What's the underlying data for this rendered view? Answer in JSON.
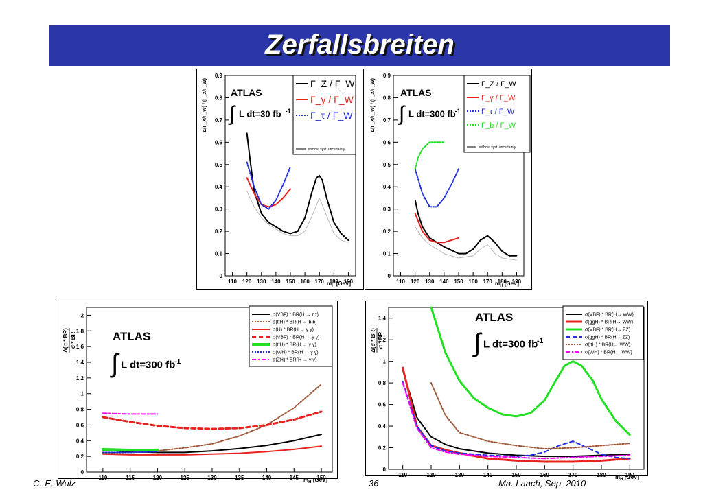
{
  "slide": {
    "title": "Zerfallsbreiten"
  },
  "footer": {
    "left": "C.-E. Wulz",
    "center": "36",
    "right": "Ma. Laach, Sep. 2010"
  },
  "colors": {
    "title_bg": "#2b37a8",
    "black": "#000000",
    "red": "#e8231f",
    "blue": "#1f2fe0",
    "green": "#22e022",
    "brown": "#a05a3c",
    "magenta": "#ff00ff",
    "gray": "#bbbbbb"
  },
  "chart_data": [
    {
      "type": "line",
      "experiment": "ATLAS",
      "lumi": "L dt=30 fb",
      "lumi_exp": "-1",
      "ylabel": "Δ(Γ_X/Γ_W) / (Γ_X/Γ_W)",
      "xlabel": "m",
      "xlabel_sub": "H",
      "xunit": "[GeV]",
      "xlim": [
        105,
        195
      ],
      "ylim": [
        0,
        0.9
      ],
      "xticks": [
        "110",
        "120",
        "130",
        "140",
        "150",
        "160",
        "170",
        "180",
        "190"
      ],
      "yticks": [
        "0",
        "0.1",
        "0.2",
        "0.3",
        "0.4",
        "0.5",
        "0.6",
        "0.7",
        "0.8",
        "0.9"
      ],
      "legend": [
        "Γ_Z / Γ_W",
        "Γ_γ / Γ_W",
        "Γ_τ / Γ_W"
      ],
      "legend_note": "without syst. uncertainty",
      "series": [
        {
          "name": "Γ_Z / Γ_W",
          "color": "black",
          "dash": "solid",
          "width": 2,
          "x": [
            120,
            122,
            125,
            130,
            135,
            140,
            145,
            150,
            155,
            160,
            165,
            168,
            170,
            172,
            175,
            180,
            185,
            190
          ],
          "y": [
            0.64,
            0.53,
            0.38,
            0.28,
            0.24,
            0.22,
            0.2,
            0.19,
            0.2,
            0.26,
            0.38,
            0.44,
            0.45,
            0.43,
            0.35,
            0.24,
            0.19,
            0.16
          ]
        },
        {
          "name": "Γ_γ / Γ_W",
          "color": "red",
          "dash": "solid",
          "width": 2,
          "x": [
            120,
            125,
            130,
            135,
            140,
            145,
            150
          ],
          "y": [
            0.44,
            0.37,
            0.32,
            0.31,
            0.32,
            0.35,
            0.39
          ]
        },
        {
          "name": "Γ_τ / Γ_W",
          "color": "blue",
          "dash": "dotted",
          "width": 2,
          "x": [
            120,
            125,
            130,
            135,
            140,
            145,
            150
          ],
          "y": [
            0.51,
            0.4,
            0.32,
            0.3,
            0.34,
            0.41,
            0.49
          ]
        },
        {
          "name": "",
          "color": "gray",
          "dash": "solid",
          "width": 1,
          "x": [
            120,
            125,
            130,
            135,
            140,
            145,
            150,
            155,
            160,
            165,
            170,
            175,
            180,
            185,
            190
          ],
          "y": [
            0.38,
            0.31,
            0.26,
            0.23,
            0.21,
            0.19,
            0.18,
            0.18,
            0.2,
            0.27,
            0.35,
            0.27,
            0.19,
            0.16,
            0.15
          ]
        }
      ]
    },
    {
      "type": "line",
      "experiment": "ATLAS",
      "lumi": "L dt=300 fb",
      "lumi_exp": "-1",
      "ylabel": "Δ(Γ_X/Γ_W) / (Γ_X/Γ_W)",
      "xlabel": "m",
      "xlabel_sub": "H",
      "xunit": "[GeV]",
      "xlim": [
        105,
        195
      ],
      "ylim": [
        0,
        0.9
      ],
      "xticks": [
        "110",
        "120",
        "130",
        "140",
        "150",
        "160",
        "170",
        "180",
        "190"
      ],
      "yticks": [
        "0",
        "0.1",
        "0.2",
        "0.3",
        "0.4",
        "0.5",
        "0.6",
        "0.7",
        "0.8",
        "0.9"
      ],
      "legend": [
        "Γ_Z / Γ_W",
        "Γ_γ / Γ_W",
        "Γ_τ / Γ_W",
        "Γ_b / Γ_W"
      ],
      "legend_note": "without syst. uncertainty",
      "series": [
        {
          "name": "Γ_Z / Γ_W",
          "color": "black",
          "dash": "solid",
          "width": 2,
          "x": [
            120,
            122,
            125,
            130,
            140,
            150,
            155,
            160,
            165,
            170,
            175,
            180,
            185,
            190
          ],
          "y": [
            0.34,
            0.28,
            0.22,
            0.17,
            0.13,
            0.1,
            0.1,
            0.12,
            0.16,
            0.18,
            0.15,
            0.11,
            0.09,
            0.09
          ]
        },
        {
          "name": "Γ_γ / Γ_W",
          "color": "red",
          "dash": "solid",
          "width": 2,
          "x": [
            120,
            125,
            130,
            135,
            140,
            145,
            150
          ],
          "y": [
            0.28,
            0.2,
            0.16,
            0.15,
            0.15,
            0.16,
            0.17
          ]
        },
        {
          "name": "Γ_τ / Γ_W",
          "color": "blue",
          "dash": "dotted",
          "width": 2,
          "x": [
            120,
            125,
            130,
            135,
            140,
            145,
            150
          ],
          "y": [
            0.48,
            0.37,
            0.31,
            0.31,
            0.35,
            0.41,
            0.48
          ]
        },
        {
          "name": "Γ_b / Γ_W",
          "color": "green",
          "dash": "dotted",
          "width": 2,
          "x": [
            120,
            122,
            125,
            130,
            135,
            140
          ],
          "y": [
            0.48,
            0.53,
            0.57,
            0.6,
            0.6,
            0.6
          ]
        },
        {
          "name": "",
          "color": "gray",
          "dash": "solid",
          "width": 1,
          "x": [
            120,
            125,
            130,
            140,
            150,
            160,
            165,
            170,
            175,
            180,
            190
          ],
          "y": [
            0.22,
            0.17,
            0.14,
            0.1,
            0.08,
            0.09,
            0.12,
            0.14,
            0.1,
            0.08,
            0.07
          ]
        }
      ]
    },
    {
      "type": "line",
      "experiment": "ATLAS",
      "lumi": "L dt=300 fb",
      "lumi_exp": "-1",
      "ylabel_num": "Δ(σ * BR)",
      "ylabel_den": "σ * BR",
      "xlabel": "m",
      "xlabel_sub": "H",
      "xunit": "[GeV]",
      "xlim": [
        107,
        152
      ],
      "ylim": [
        0,
        2.1
      ],
      "xticks": [
        "110",
        "115",
        "120",
        "125",
        "130",
        "135",
        "140",
        "145",
        "150"
      ],
      "yticks": [
        "0",
        "0.2",
        "0.4",
        "0.6",
        "0.8",
        "1",
        "1.2",
        "1.4",
        "1.6",
        "1.8",
        "2"
      ],
      "legend": [
        "σ(VBF) * BR(H → τ τ)",
        "σ(ttH) * BR(H → b b)",
        "σ(H) * BR(H → γ γ)",
        "σ(VBF) * BR(H → γ γ)",
        "σ(ttH) * BR(H → γ γ)",
        "σ(WH) * BR(H → γ γ)",
        "σ(ZH) * BR(H → γ γ)"
      ],
      "series": [
        {
          "name": "σ(VBF) * BR(H → τ τ)",
          "color": "black",
          "dash": "solid",
          "width": 2,
          "x": [
            110,
            115,
            120,
            125,
            130,
            135,
            140,
            145,
            150
          ],
          "y": [
            0.28,
            0.26,
            0.25,
            0.25,
            0.27,
            0.3,
            0.34,
            0.4,
            0.48
          ]
        },
        {
          "name": "σ(ttH) * BR(H → b b)",
          "color": "brown",
          "dash": "dotted",
          "width": 2,
          "x": [
            110,
            115,
            120,
            125,
            130,
            135,
            140,
            145,
            150
          ],
          "y": [
            0.24,
            0.25,
            0.27,
            0.31,
            0.36,
            0.46,
            0.6,
            0.82,
            1.12
          ]
        },
        {
          "name": "σ(H) * BR(H → γ γ)",
          "color": "red",
          "dash": "solid",
          "width": 2,
          "x": [
            110,
            115,
            120,
            125,
            130,
            135,
            140,
            145,
            150
          ],
          "y": [
            0.23,
            0.22,
            0.22,
            0.22,
            0.23,
            0.24,
            0.26,
            0.29,
            0.33
          ]
        },
        {
          "name": "σ(VBF) * BR(H → γ γ)",
          "color": "red",
          "dash": "dashed",
          "width": 3,
          "x": [
            110,
            115,
            120,
            125,
            130,
            135,
            140,
            145,
            150
          ],
          "y": [
            0.7,
            0.64,
            0.59,
            0.56,
            0.55,
            0.56,
            0.6,
            0.67,
            0.77
          ]
        },
        {
          "name": "σ(ttH) * BR(H → γ γ)",
          "color": "green",
          "dash": "solid",
          "width": 4,
          "x": [
            110,
            115,
            120
          ],
          "y": [
            0.29,
            0.28,
            0.28
          ]
        },
        {
          "name": "σ(WH) * BR(H → γ γ)",
          "color": "blue",
          "dash": "dotted",
          "width": 2,
          "x": [
            110,
            115,
            120
          ],
          "y": [
            0.25,
            0.25,
            0.26
          ]
        },
        {
          "name": "σ(ZH) * BR(H → γ γ)",
          "color": "magenta",
          "dash": "dashdot",
          "width": 2,
          "x": [
            110,
            115,
            120
          ],
          "y": [
            0.75,
            0.74,
            0.74
          ]
        }
      ]
    },
    {
      "type": "line",
      "experiment": "ATLAS",
      "lumi": "L dt=300 fb",
      "lumi_exp": "-1",
      "ylabel_num": "Δ(σ * BR)",
      "ylabel_den": "σ * BR",
      "xlabel": "m",
      "xlabel_sub": "H",
      "xunit": "[GeV]",
      "xlim": [
        105,
        195
      ],
      "ylim": [
        0,
        1.5
      ],
      "xticks": [
        "110",
        "120",
        "130",
        "140",
        "150",
        "160",
        "170",
        "180",
        "190"
      ],
      "yticks": [
        "0",
        "0.2",
        "0.4",
        "0.6",
        "0.8",
        "1",
        "1.2",
        "1.4"
      ],
      "legend": [
        "σ(VBF) * BR(H→ WW)",
        "σ(ggH) * BR(H→ WW)",
        "σ(VBF) * BR(H→ ZZ)",
        "σ(ggH) * BR(H→ ZZ)",
        "σ(ttH) * BR(H→ WW)",
        "σ(WH) * BR(H→ WW)"
      ],
      "series": [
        {
          "name": "σ(VBF) * BR(H→ WW)",
          "color": "black",
          "dash": "solid",
          "width": 2,
          "x": [
            110,
            115,
            120,
            125,
            130,
            140,
            150,
            160,
            170,
            180,
            190
          ],
          "y": [
            0.92,
            0.48,
            0.3,
            0.23,
            0.19,
            0.15,
            0.13,
            0.12,
            0.12,
            0.13,
            0.14
          ]
        },
        {
          "name": "σ(ggH) * BR(H→ WW)",
          "color": "red",
          "dash": "solid",
          "width": 3,
          "x": [
            110,
            115,
            120,
            125,
            130,
            140,
            150,
            160,
            170,
            180,
            190
          ],
          "y": [
            0.94,
            0.4,
            0.22,
            0.18,
            0.15,
            0.1,
            0.08,
            0.07,
            0.07,
            0.08,
            0.1
          ]
        },
        {
          "name": "σ(VBF) * BR(H→ ZZ)",
          "color": "green",
          "dash": "solid",
          "width": 3,
          "x": [
            120,
            125,
            130,
            135,
            140,
            145,
            150,
            155,
            160,
            163,
            167,
            170,
            173,
            177,
            180,
            185,
            190
          ],
          "y": [
            1.5,
            1.08,
            0.82,
            0.66,
            0.57,
            0.51,
            0.49,
            0.52,
            0.64,
            0.78,
            0.96,
            1.0,
            0.96,
            0.82,
            0.65,
            0.45,
            0.32
          ]
        },
        {
          "name": "σ(ggH) * BR(H→ ZZ)",
          "color": "blue",
          "dash": "dashed",
          "width": 2,
          "x": [
            110,
            115,
            120,
            125,
            130,
            140,
            150,
            155,
            160,
            165,
            170,
            175,
            180,
            185,
            190
          ],
          "y": [
            0.81,
            0.4,
            0.22,
            0.17,
            0.15,
            0.13,
            0.12,
            0.13,
            0.16,
            0.22,
            0.26,
            0.2,
            0.14,
            0.11,
            0.1
          ]
        },
        {
          "name": "σ(ttH) * BR(H→ WW)",
          "color": "brown",
          "dash": "dotted",
          "width": 2,
          "x": [
            120,
            125,
            130,
            140,
            150,
            160,
            170,
            180,
            190
          ],
          "y": [
            0.8,
            0.5,
            0.34,
            0.26,
            0.22,
            0.19,
            0.2,
            0.22,
            0.24
          ]
        },
        {
          "name": "σ(WH) * BR(H→ WW)",
          "color": "magenta",
          "dash": "dashdot",
          "width": 2,
          "x": [
            110,
            115,
            120,
            125,
            130,
            140,
            150,
            160,
            170,
            180,
            190
          ],
          "y": [
            0.8,
            0.38,
            0.2,
            0.16,
            0.14,
            0.12,
            0.11,
            0.1,
            0.11,
            0.12,
            0.13
          ]
        }
      ]
    }
  ]
}
